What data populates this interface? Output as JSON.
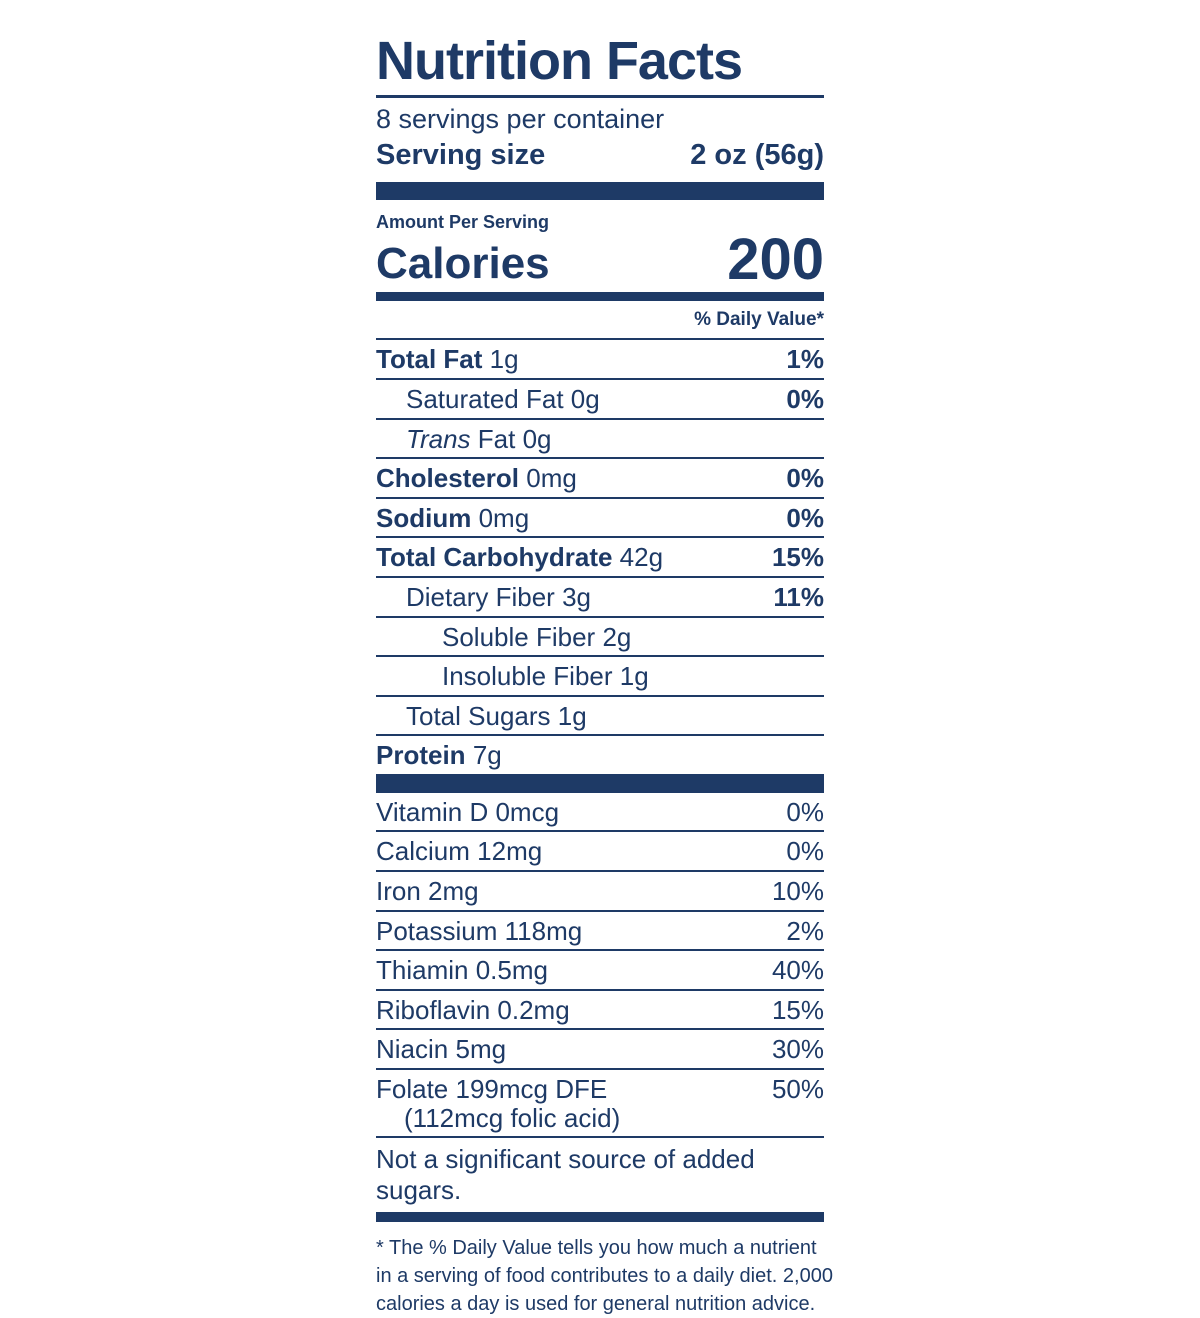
{
  "theme": {
    "navy": "#1e3a66",
    "background": "#ffffff"
  },
  "label": {
    "title": "Nutrition Facts",
    "servings_per_container": "8 servings per container",
    "serving_size": {
      "label": "Serving size",
      "value": "2 oz (56g)"
    },
    "amount_per_serving": "Amount Per Serving",
    "calories": {
      "label": "Calories",
      "value": "200"
    },
    "daily_value_header": "% Daily Value*",
    "nutrients": [
      {
        "name": "Total Fat",
        "amount": "1g",
        "dv": "1%"
      },
      {
        "name": "Saturated Fat",
        "amount": "0g",
        "dv": "0%"
      },
      {
        "name_italic": "Trans",
        "name": "Fat",
        "amount": "0g",
        "dv": ""
      },
      {
        "name": "Cholesterol",
        "amount": "0mg",
        "dv": "0%"
      },
      {
        "name": "Sodium",
        "amount": "0mg",
        "dv": "0%"
      },
      {
        "name": "Total Carbohydrate",
        "amount": "42g",
        "dv": "15%"
      },
      {
        "name": "Dietary Fiber",
        "amount": "3g",
        "dv": "11%"
      },
      {
        "name": "Soluble Fiber",
        "amount": "2g",
        "dv": ""
      },
      {
        "name": "Insoluble Fiber",
        "amount": "1g",
        "dv": ""
      },
      {
        "name": "Total Sugars",
        "amount": "1g",
        "dv": ""
      },
      {
        "name": "Protein",
        "amount": "7g",
        "dv": ""
      }
    ],
    "micronutrients": [
      {
        "name": "Vitamin D",
        "amount": "0mcg",
        "dv": "0%"
      },
      {
        "name": "Calcium",
        "amount": "12mg",
        "dv": "0%"
      },
      {
        "name": "Iron",
        "amount": "2mg",
        "dv": "10%"
      },
      {
        "name": "Potassium",
        "amount": "118mg",
        "dv": "2%"
      },
      {
        "name": "Thiamin",
        "amount": "0.5mg",
        "dv": "40%"
      },
      {
        "name": "Riboflavin",
        "amount": "0.2mg",
        "dv": "15%"
      },
      {
        "name": "Niacin",
        "amount": "5mg",
        "dv": "30%"
      },
      {
        "name": "Folate",
        "amount": "199mcg DFE",
        "dv": "50%",
        "line2": "(112mcg folic acid)"
      }
    ],
    "note": "Not a significant source of added sugars.",
    "footnote_lines": {
      "0": "* The % Daily Value tells you how much a nutrient",
      "1": "in a serving of food contributes to a daily diet. 2,000",
      "2": "calories a day is used for general nutrition advice."
    }
  }
}
